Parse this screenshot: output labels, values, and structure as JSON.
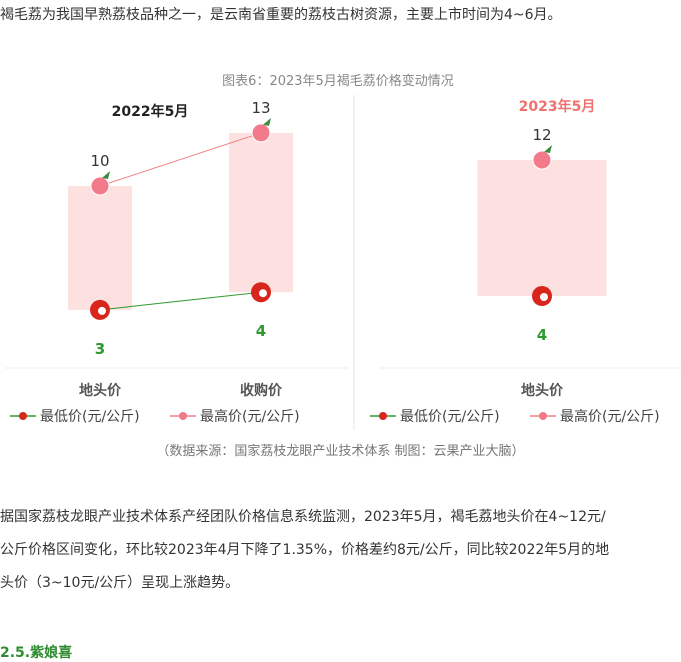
{
  "intro": "褐毛荔为我国早熟荔枝品种之一，是云南省重要的荔枝古树资源，主要上市时间为4~6月。",
  "chart_data": {
    "type": "bar",
    "title": "图表6：2023年5月褐毛荔价格变动情况",
    "unit_series": [
      "最低价(元/公斤)",
      "最高价(元/公斤)"
    ],
    "panels": [
      {
        "label": "2022年5月",
        "categories": [
          "地头价",
          "收购价"
        ],
        "series": [
          {
            "name": "最低价(元/公斤)",
            "values": [
              3,
              4
            ]
          },
          {
            "name": "最高价(元/公斤)",
            "values": [
              10,
              13
            ]
          }
        ],
        "legend": [
          "最低价(元/公斤)",
          "最高价(元/公斤)"
        ]
      },
      {
        "label": "2023年5月",
        "categories": [
          "地头价"
        ],
        "series": [
          {
            "name": "最低价(元/公斤)",
            "values": [
              4
            ]
          },
          {
            "name": "最高价(元/公斤)",
            "values": [
              12
            ]
          }
        ],
        "legend": [
          "最低价(元/公斤)",
          "最高价(元/公斤)"
        ]
      }
    ],
    "legend_placement": "bottom",
    "grid": false,
    "colors": {
      "low": "#2e9a2e",
      "high": "#f08080",
      "bar": "#fde0e0",
      "label_2023": "#f07070"
    }
  },
  "source": "（数据来源：国家荔枝龙眼产业技术体系  制图：云果产业大脑）",
  "paragraph": [
    "据国家荔枝龙眼产业技术体系产经团队价格信息系统监测，2023年5月，褐毛荔地头价在4~12元/",
    "公斤价格区间变化，环比较2023年4月下降了1.35%，价格差约8元/公斤，同比较2022年5月的地",
    "头价（3~10元/公斤）呈现上涨趋势。"
  ],
  "heading": "2.5.紫娘喜"
}
